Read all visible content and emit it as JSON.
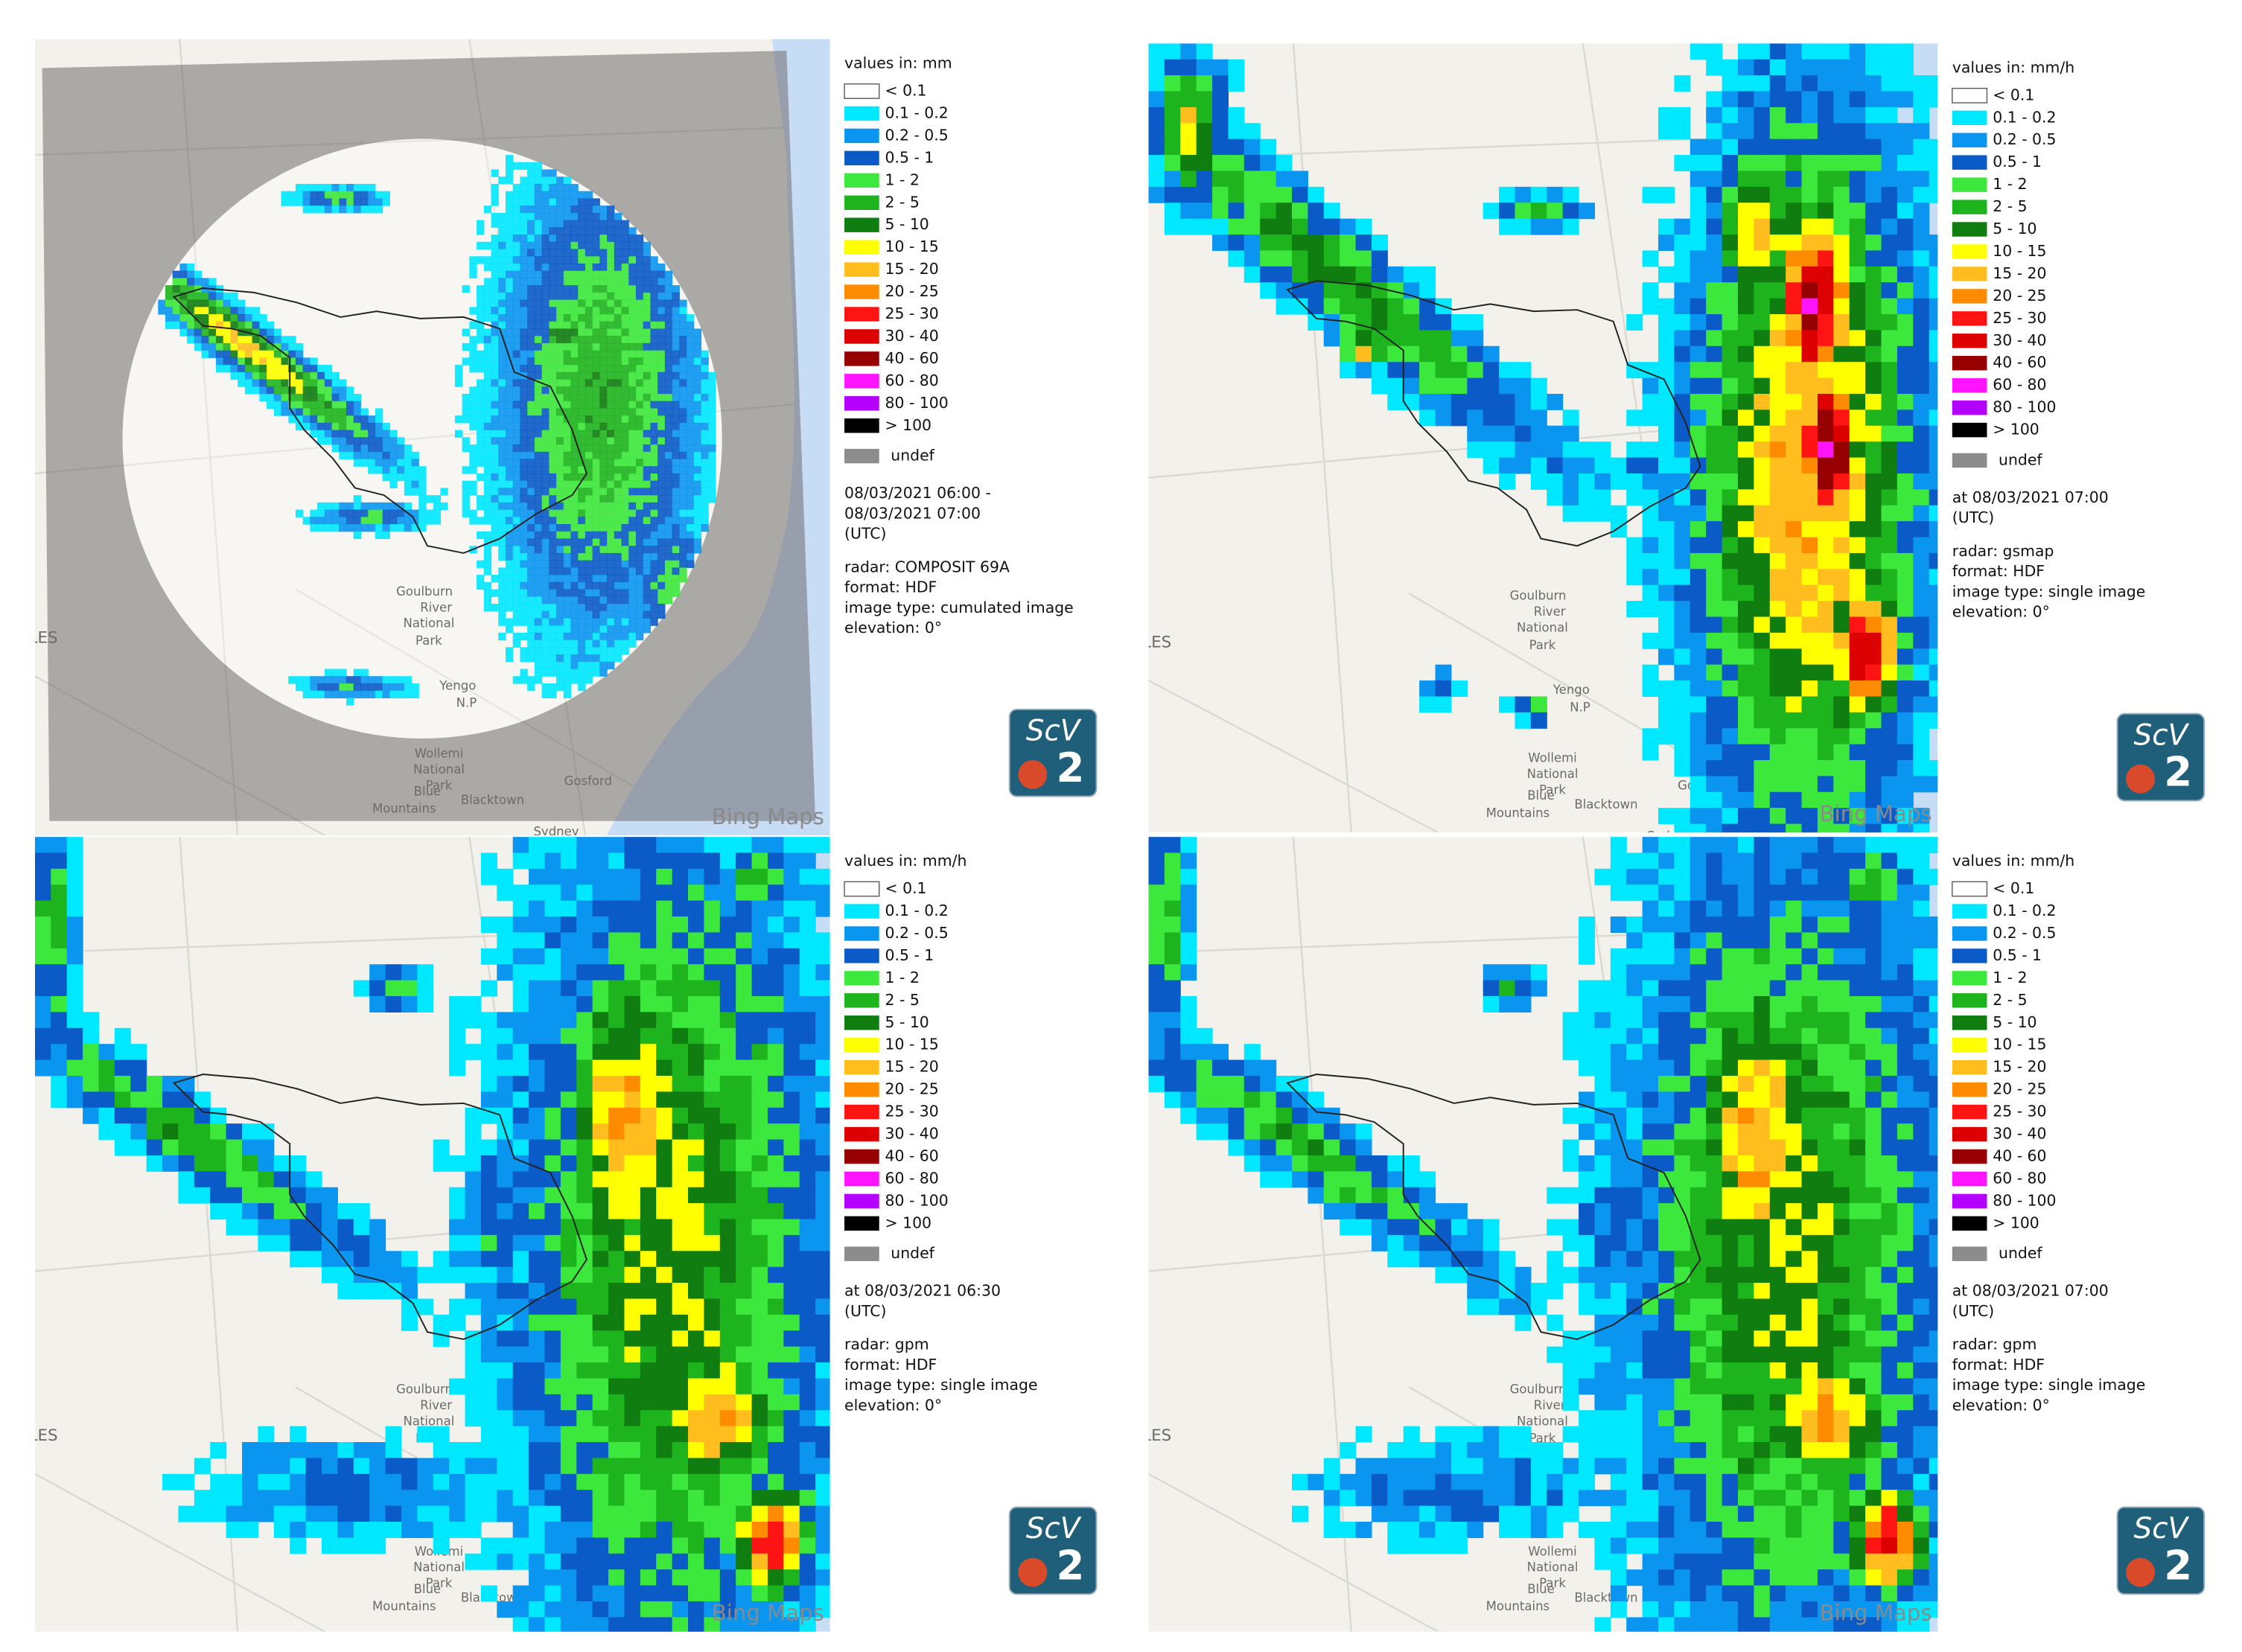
{
  "legend": {
    "classes": [
      {
        "label": "< 0.1",
        "color": "#ffffff"
      },
      {
        "label": "0.1 - 0.2",
        "color": "#00e8ff"
      },
      {
        "label": "0.2 - 0.5",
        "color": "#0a96f0"
      },
      {
        "label": "0.5 - 1",
        "color": "#0a5ac8"
      },
      {
        "label": "1 - 2",
        "color": "#3ce83c"
      },
      {
        "label": "2 - 5",
        "color": "#1eb41e"
      },
      {
        "label": "5 - 10",
        "color": "#0f7d0f"
      },
      {
        "label": "10 - 15",
        "color": "#ffff00"
      },
      {
        "label": "15 - 20",
        "color": "#ffbe1e"
      },
      {
        "label": "20 - 25",
        "color": "#ff8c00"
      },
      {
        "label": "25 - 30",
        "color": "#ff1414"
      },
      {
        "label": "30 - 40",
        "color": "#dc0000"
      },
      {
        "label": "40 - 60",
        "color": "#960000"
      },
      {
        "label": "60 - 80",
        "color": "#ff14ff"
      },
      {
        "label": "80 - 100",
        "color": "#b400ff"
      },
      {
        "label": "> 100",
        "color": "#000000"
      },
      {
        "label": "undef",
        "color": "#8c8c8c"
      }
    ]
  },
  "map_labels": [
    "ALES",
    "Goulburn",
    "River",
    "National",
    "Park",
    "Yengo",
    "N.P",
    "Wollemi",
    "National",
    "Park",
    "Blue",
    "Mountains",
    "Blacktown",
    "Gosford",
    "Sydney"
  ],
  "attribution": "Bing Maps",
  "logo": {
    "text": "ScV",
    "number": "2"
  },
  "panels": [
    {
      "units": "values in: mm",
      "time": [
        "08/03/2021 06:00 -",
        "08/03/2021 07:00",
        "(UTC)"
      ],
      "info": [
        "radar: COMPOSIT 69A",
        "format: HDF",
        "image type: cumulated image",
        "elevation: 0°"
      ]
    },
    {
      "units": "values in: mm/h",
      "time": [
        "at 08/03/2021 07:00",
        "(UTC)"
      ],
      "info": [
        "radar: gsmap",
        "format: HDF",
        "image type: single image",
        "elevation: 0°"
      ]
    },
    {
      "units": "values in: mm/h",
      "time": [
        "at 08/03/2021 06:30",
        "(UTC)"
      ],
      "info": [
        "radar: gpm",
        "format: HDF",
        "image type: single image",
        "elevation: 0°"
      ]
    },
    {
      "units": "values in: mm/h",
      "time": [
        "at 08/03/2021 07:00",
        "(UTC)"
      ],
      "info": [
        "radar: gpm",
        "format: HDF",
        "image type: single image",
        "elevation: 0°"
      ]
    }
  ]
}
